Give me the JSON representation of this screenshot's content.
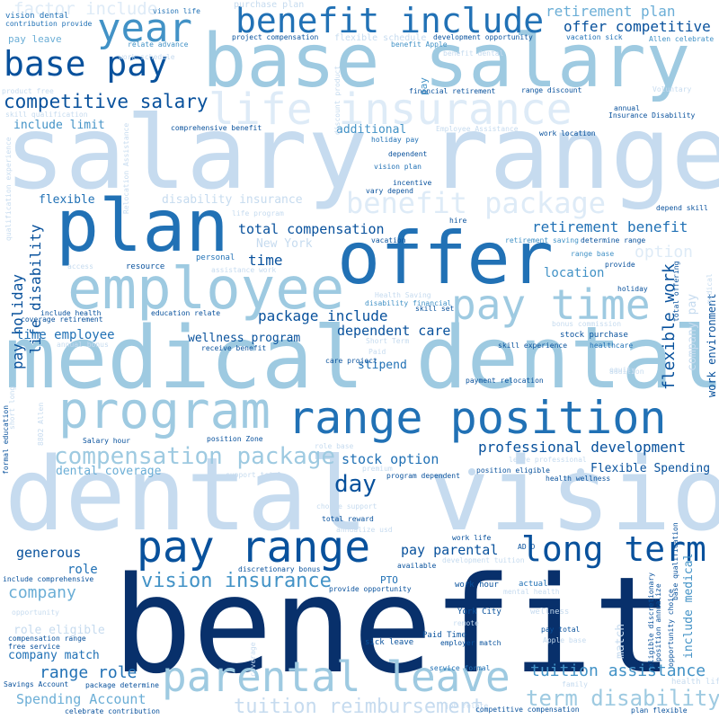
{
  "palette": {
    "darkest": "#08306b",
    "dark": "#08519c",
    "medium_dark": "#2171b5",
    "medium": "#4292c6",
    "medium_light": "#6baed6",
    "light": "#9ecae1",
    "lighter": "#c6dbef",
    "lightest": "#deebf7"
  },
  "cloud": {
    "words": [
      "benefit",
      "dental vision",
      "salary range",
      "medical dental",
      "base salary",
      "offer",
      "plan",
      "range position",
      "employee",
      "program",
      "parental leave",
      "pay range",
      "base pay",
      "benefit include",
      "year",
      "pay time",
      "long term",
      "life insurance",
      "benefit package",
      "compensation package",
      "vision insurance",
      "tuition reimbursement",
      "term disability",
      "competitive salary",
      "factor include",
      "retirement benefit",
      "total compensation",
      "professional development",
      "tuition assistance",
      "flexible work",
      "retirement plan",
      "offer competitive",
      "pay holiday",
      "life disability",
      "package include",
      "dependent care",
      "time employee",
      "wellness program",
      "disability insurance",
      "stock option",
      "day",
      "pay parental",
      "generous",
      "company",
      "role",
      "dental coverage",
      "company match",
      "range role",
      "Spending Account",
      "flexible",
      "include limit",
      "additional",
      "time",
      "option",
      "location",
      "stipend",
      "work environment",
      "include medical",
      "Flexible Spending",
      "company pay",
      "New York",
      "match",
      "vision dental",
      "vision life",
      "purchase plan",
      "contribution provide",
      "pay leave",
      "relate advance",
      "project compensation",
      "flexible schedule",
      "benefit Apple",
      "development opportunity",
      "vacation sick",
      "Allen celebrate",
      "work schedule",
      "product free",
      "skill qualification",
      "comprehensive benefit",
      "financial retirement",
      "range discount",
      "Insurance Disability",
      "work location",
      "Employee Assistance",
      "holiday pay",
      "dependent",
      "vision plan",
      "incentive",
      "vary depend",
      "life program",
      "depend skill",
      "hire",
      "vacation",
      "retirement saving",
      "determine range",
      "range base",
      "provide",
      "personal",
      "resource",
      "access",
      "assistance work",
      "holiday",
      "include health",
      "coverage retirement",
      "education relate",
      "Health Saving",
      "disability financial",
      "skill set",
      "total offering",
      "bonus commission",
      "stock purchase",
      "skill experience",
      "healthcare",
      "annual bonus",
      "receive benefit",
      "Short Term",
      "Paid",
      "care project",
      "payment relocation",
      "equity",
      "short long",
      "Salary hour",
      "position Zone",
      "role base",
      "position eligible",
      "leave professional",
      "program dependent",
      "health wellness",
      "support total",
      "premium",
      "formal education",
      "8802 Allen",
      "qualification experience",
      "choice support",
      "total reward",
      "annualize usd",
      "work life",
      "AD D",
      "development tuition",
      "include comprehensive",
      "discretionary bonus",
      "PTO",
      "available",
      "provide opportunity",
      "work hour",
      "actual",
      "mental health",
      "York City",
      "opportunity",
      "role eligible",
      "wellness",
      "compensation range",
      "remote",
      "free service",
      "Paid Time",
      "pay total",
      "Apple base",
      "employer match",
      "sick leave",
      "Savings Account",
      "package determine",
      "service formal",
      "celebrate contribution",
      "job relate",
      "competitive compensation",
      "plan flexible",
      "family",
      "health life",
      "coverage",
      "addition",
      "eligible discretionary",
      "position annualize",
      "opportunity choice",
      "base qualification",
      "Voluntary",
      "annual",
      "Relocation Assistance",
      "discount product",
      "benefit dental",
      "pay",
      "medical"
    ]
  }
}
